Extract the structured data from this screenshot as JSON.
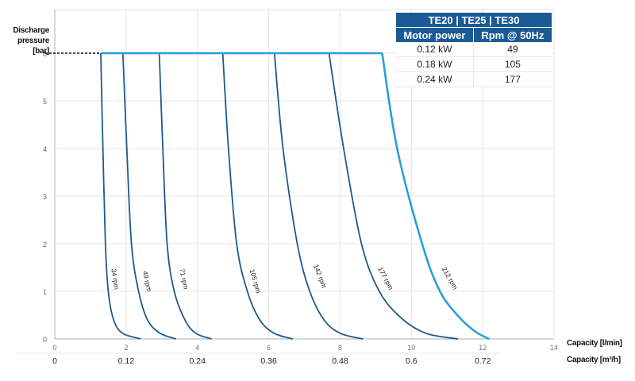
{
  "chart_data": {
    "type": "line",
    "title": "",
    "xlabel": "Capacity [l/min]",
    "xlabel_secondary": "Capacity [m³/h]",
    "ylabel": "Discharge pressure [bar]",
    "xlim": [
      0,
      14
    ],
    "ylim": [
      0,
      6
    ],
    "grid": true,
    "x_ticks": [
      0,
      2,
      4,
      6,
      8,
      10,
      12,
      14
    ],
    "x_ticks_secondary": [
      "0",
      "0.12",
      "0.24",
      "0.36",
      "0.48",
      "0.6",
      "0.72"
    ],
    "y_ticks": [
      0,
      1,
      2,
      3,
      4,
      5,
      6
    ],
    "max_pressure": 6,
    "series": [
      {
        "name": "34 rpm",
        "color": "#1d5a8c",
        "points": [
          [
            1.29,
            6
          ],
          [
            1.35,
            4
          ],
          [
            1.42,
            2
          ],
          [
            1.5,
            1
          ],
          [
            1.65,
            0.4
          ],
          [
            1.9,
            0.12
          ],
          [
            2.41,
            0
          ]
        ]
      },
      {
        "name": "49 rpm",
        "color": "#1d5a8c",
        "points": [
          [
            1.91,
            6
          ],
          [
            2.02,
            4
          ],
          [
            2.15,
            2
          ],
          [
            2.35,
            1
          ],
          [
            2.6,
            0.4
          ],
          [
            2.95,
            0.12
          ],
          [
            3.4,
            0
          ]
        ]
      },
      {
        "name": "71 rpm",
        "color": "#1d5a8c",
        "points": [
          [
            2.93,
            6
          ],
          [
            3.03,
            4
          ],
          [
            3.15,
            2
          ],
          [
            3.35,
            1
          ],
          [
            3.65,
            0.4
          ],
          [
            3.95,
            0.12
          ],
          [
            4.4,
            0
          ]
        ]
      },
      {
        "name": "105 rpm",
        "color": "#1d5a8c",
        "points": [
          [
            4.71,
            6
          ],
          [
            4.87,
            4
          ],
          [
            5.1,
            2
          ],
          [
            5.4,
            1
          ],
          [
            5.75,
            0.4
          ],
          [
            6.15,
            0.12
          ],
          [
            6.67,
            0
          ]
        ]
      },
      {
        "name": "142 rpm",
        "color": "#1d5a8c",
        "points": [
          [
            6.16,
            6
          ],
          [
            6.4,
            4
          ],
          [
            6.8,
            2
          ],
          [
            7.15,
            1
          ],
          [
            7.55,
            0.4
          ],
          [
            8.0,
            0.12
          ],
          [
            8.64,
            0
          ]
        ]
      },
      {
        "name": "177 rpm",
        "color": "#1d5a8c",
        "points": [
          [
            7.69,
            6
          ],
          [
            8.1,
            4
          ],
          [
            8.6,
            2
          ],
          [
            9.1,
            1
          ],
          [
            9.7,
            0.45
          ],
          [
            10.4,
            0.12
          ],
          [
            11.31,
            0
          ]
        ]
      },
      {
        "name": "212 rpm",
        "color": "#2a9fd6",
        "points": [
          [
            9.18,
            6
          ],
          [
            9.6,
            4
          ],
          [
            10.3,
            2
          ],
          [
            10.8,
            1
          ],
          [
            11.35,
            0.45
          ],
          [
            11.8,
            0.15
          ],
          [
            12.18,
            0
          ]
        ]
      }
    ],
    "labels": [
      {
        "text": "34 rpm",
        "x": 1.63,
        "y": 1.25,
        "angle": 82
      },
      {
        "text": "49 rpm",
        "x": 2.53,
        "y": 1.2,
        "angle": 78
      },
      {
        "text": "71 rpm",
        "x": 3.56,
        "y": 1.25,
        "angle": 78
      },
      {
        "text": "105 rpm",
        "x": 5.56,
        "y": 1.2,
        "angle": 74
      },
      {
        "text": "142 rpm",
        "x": 7.38,
        "y": 1.3,
        "angle": 68
      },
      {
        "text": "177 rpm",
        "x": 9.22,
        "y": 1.25,
        "angle": 62
      },
      {
        "text": "212 rpm",
        "x": 11.02,
        "y": 1.25,
        "angle": 60
      }
    ]
  },
  "axes": {
    "ylabel_line1": "Discharge",
    "ylabel_line2": "pressure [bar]",
    "xlabel": "Capacity [l/min]",
    "xlabel_secondary": "Capacity [m³/h]"
  },
  "spec_table": {
    "title": "TE20 | TE25 | TE30",
    "headers": [
      "Motor power",
      "Rpm @ 50Hz"
    ],
    "rows": [
      [
        "0.12 kW",
        "49"
      ],
      [
        "0.18 kW",
        "105"
      ],
      [
        "0.24 kW",
        "177"
      ]
    ]
  },
  "colors": {
    "curve": "#1d5a8c",
    "curve_max": "#2a9fd6",
    "table_header": "#1a5a96",
    "grid": "#e6e6e6",
    "axis": "#bfbfbf"
  }
}
